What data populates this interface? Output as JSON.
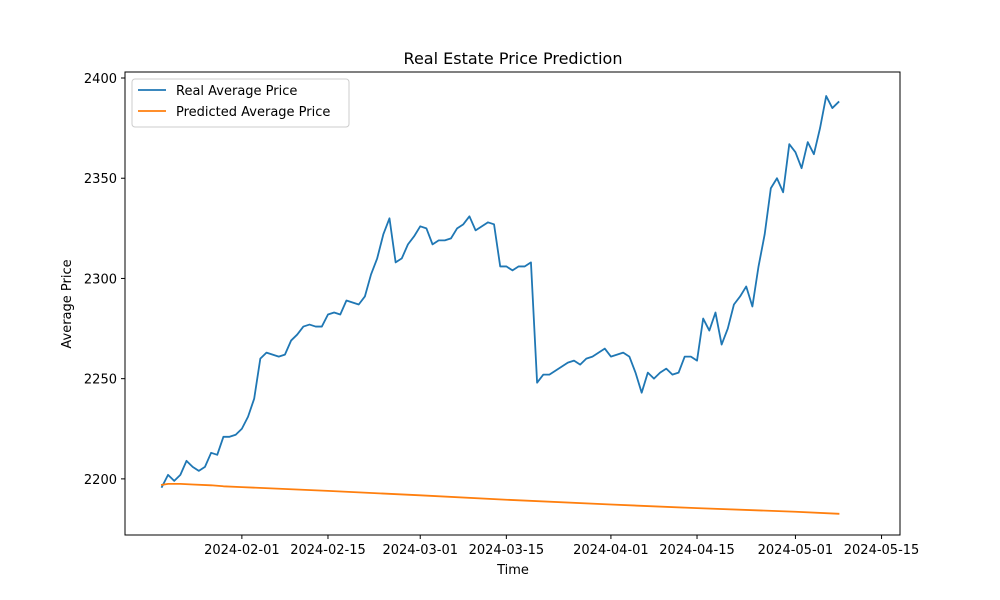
{
  "chart_data": {
    "type": "line",
    "title": "Real Estate Price Prediction",
    "xlabel": "Time",
    "ylabel": "Average Price",
    "x_type": "date",
    "xlim": [
      "2024-01-13",
      "2024-05-18"
    ],
    "ylim": [
      2172,
      2403
    ],
    "x_ticks": [
      {
        "date": "2024-02-01",
        "label": "2024-02-01"
      },
      {
        "date": "2024-02-15",
        "label": "2024-02-15"
      },
      {
        "date": "2024-03-01",
        "label": "2024-03-01"
      },
      {
        "date": "2024-03-15",
        "label": "2024-03-15"
      },
      {
        "date": "2024-04-01",
        "label": "2024-04-01"
      },
      {
        "date": "2024-04-15",
        "label": "2024-04-15"
      },
      {
        "date": "2024-05-01",
        "label": "2024-05-01"
      },
      {
        "date": "2024-05-15",
        "label": "2024-05-15"
      }
    ],
    "y_ticks": [
      2200,
      2250,
      2300,
      2350,
      2400
    ],
    "grid": false,
    "legend_position": "top-left",
    "series": [
      {
        "name": "Real Average Price",
        "color": "#1f77b4",
        "points": [
          [
            "2024-01-19",
            2196
          ],
          [
            "2024-01-20",
            2202
          ],
          [
            "2024-01-21",
            2199
          ],
          [
            "2024-01-22",
            2202
          ],
          [
            "2024-01-23",
            2209
          ],
          [
            "2024-01-24",
            2206
          ],
          [
            "2024-01-25",
            2204
          ],
          [
            "2024-01-26",
            2206
          ],
          [
            "2024-01-27",
            2213
          ],
          [
            "2024-01-28",
            2212
          ],
          [
            "2024-01-29",
            2221
          ],
          [
            "2024-01-30",
            2221
          ],
          [
            "2024-01-31",
            2222
          ],
          [
            "2024-02-01",
            2225
          ],
          [
            "2024-02-02",
            2231
          ],
          [
            "2024-02-03",
            2240
          ],
          [
            "2024-02-04",
            2260
          ],
          [
            "2024-02-05",
            2263
          ],
          [
            "2024-02-06",
            2262
          ],
          [
            "2024-02-07",
            2261
          ],
          [
            "2024-02-08",
            2262
          ],
          [
            "2024-02-09",
            2269
          ],
          [
            "2024-02-10",
            2272
          ],
          [
            "2024-02-11",
            2276
          ],
          [
            "2024-02-12",
            2277
          ],
          [
            "2024-02-13",
            2276
          ],
          [
            "2024-02-14",
            2276
          ],
          [
            "2024-02-15",
            2282
          ],
          [
            "2024-02-16",
            2283
          ],
          [
            "2024-02-17",
            2282
          ],
          [
            "2024-02-18",
            2289
          ],
          [
            "2024-02-19",
            2288
          ],
          [
            "2024-02-20",
            2287
          ],
          [
            "2024-02-21",
            2291
          ],
          [
            "2024-02-22",
            2302
          ],
          [
            "2024-02-23",
            2310
          ],
          [
            "2024-02-24",
            2322
          ],
          [
            "2024-02-25",
            2330
          ],
          [
            "2024-02-26",
            2308
          ],
          [
            "2024-02-27",
            2310
          ],
          [
            "2024-02-28",
            2317
          ],
          [
            "2024-02-29",
            2321
          ],
          [
            "2024-03-01",
            2326
          ],
          [
            "2024-03-02",
            2325
          ],
          [
            "2024-03-03",
            2317
          ],
          [
            "2024-03-04",
            2319
          ],
          [
            "2024-03-05",
            2319
          ],
          [
            "2024-03-06",
            2320
          ],
          [
            "2024-03-07",
            2325
          ],
          [
            "2024-03-08",
            2327
          ],
          [
            "2024-03-09",
            2331
          ],
          [
            "2024-03-10",
            2324
          ],
          [
            "2024-03-11",
            2326
          ],
          [
            "2024-03-12",
            2328
          ],
          [
            "2024-03-13",
            2327
          ],
          [
            "2024-03-14",
            2306
          ],
          [
            "2024-03-15",
            2306
          ],
          [
            "2024-03-16",
            2304
          ],
          [
            "2024-03-17",
            2306
          ],
          [
            "2024-03-18",
            2306
          ],
          [
            "2024-03-19",
            2308
          ],
          [
            "2024-03-20",
            2248
          ],
          [
            "2024-03-21",
            2252
          ],
          [
            "2024-03-22",
            2252
          ],
          [
            "2024-03-23",
            2254
          ],
          [
            "2024-03-24",
            2256
          ],
          [
            "2024-03-25",
            2258
          ],
          [
            "2024-03-26",
            2259
          ],
          [
            "2024-03-27",
            2257
          ],
          [
            "2024-03-28",
            2260
          ],
          [
            "2024-03-29",
            2261
          ],
          [
            "2024-03-30",
            2263
          ],
          [
            "2024-03-31",
            2265
          ],
          [
            "2024-04-01",
            2261
          ],
          [
            "2024-04-02",
            2262
          ],
          [
            "2024-04-03",
            2263
          ],
          [
            "2024-04-04",
            2261
          ],
          [
            "2024-04-05",
            2253
          ],
          [
            "2024-04-06",
            2243
          ],
          [
            "2024-04-07",
            2253
          ],
          [
            "2024-04-08",
            2250
          ],
          [
            "2024-04-09",
            2253
          ],
          [
            "2024-04-10",
            2255
          ],
          [
            "2024-04-11",
            2252
          ],
          [
            "2024-04-12",
            2253
          ],
          [
            "2024-04-13",
            2261
          ],
          [
            "2024-04-14",
            2261
          ],
          [
            "2024-04-15",
            2259
          ],
          [
            "2024-04-16",
            2280
          ],
          [
            "2024-04-17",
            2274
          ],
          [
            "2024-04-18",
            2283
          ],
          [
            "2024-04-19",
            2267
          ],
          [
            "2024-04-20",
            2275
          ],
          [
            "2024-04-21",
            2287
          ],
          [
            "2024-04-22",
            2291
          ],
          [
            "2024-04-23",
            2296
          ],
          [
            "2024-04-24",
            2286
          ],
          [
            "2024-04-25",
            2306
          ],
          [
            "2024-04-26",
            2322
          ],
          [
            "2024-04-27",
            2345
          ],
          [
            "2024-04-28",
            2350
          ],
          [
            "2024-04-29",
            2343
          ],
          [
            "2024-04-30",
            2367
          ],
          [
            "2024-05-01",
            2363
          ],
          [
            "2024-05-02",
            2355
          ],
          [
            "2024-05-03",
            2368
          ],
          [
            "2024-05-04",
            2362
          ],
          [
            "2024-05-05",
            2375
          ],
          [
            "2024-05-06",
            2391
          ],
          [
            "2024-05-07",
            2385
          ],
          [
            "2024-05-08",
            2388
          ]
        ]
      },
      {
        "name": "Predicted Average Price",
        "color": "#ff7f0e",
        "points": [
          [
            "2024-01-19",
            2197
          ],
          [
            "2024-01-20",
            2197.5
          ],
          [
            "2024-01-22",
            2197.5
          ],
          [
            "2024-01-24",
            2197.2
          ],
          [
            "2024-01-27",
            2196.8
          ],
          [
            "2024-01-29",
            2196.3
          ],
          [
            "2024-02-01",
            2195.9
          ],
          [
            "2024-02-15",
            2194
          ],
          [
            "2024-03-01",
            2191.8
          ],
          [
            "2024-03-15",
            2189.6
          ],
          [
            "2024-04-01",
            2187.2
          ],
          [
            "2024-04-15",
            2185.4
          ],
          [
            "2024-05-01",
            2183.6
          ],
          [
            "2024-05-08",
            2182.6
          ]
        ]
      }
    ]
  }
}
